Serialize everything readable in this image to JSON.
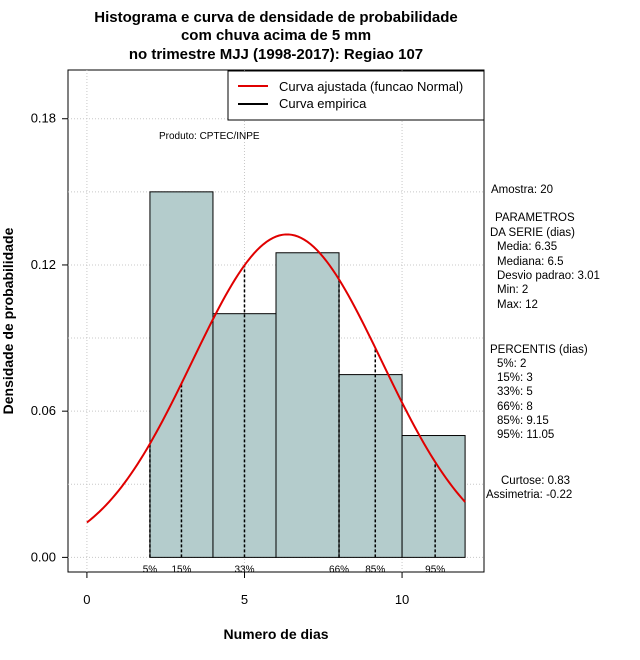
{
  "chart_data": {
    "type": "histogram",
    "title": [
      "Histograma e curva de densidade de probabilidade",
      "com chuva acima de 5 mm",
      "no trimestre MJJ (1998-2017): Regiao 107"
    ],
    "xlabel": "Numero de dias",
    "ylabel": "Densidade de probabilidade",
    "xlim": [
      -0.6,
      12.6
    ],
    "ylim": [
      -0.006,
      0.2
    ],
    "x_ticks": [
      0,
      5,
      10
    ],
    "y_ticks": [
      0.0,
      0.06,
      0.12,
      0.18
    ],
    "y_tick_labels": [
      "0.00",
      "0.06",
      "0.12",
      "0.18"
    ],
    "bins": [
      {
        "start": 2,
        "end": 4,
        "density": 0.15
      },
      {
        "start": 4,
        "end": 6,
        "density": 0.1
      },
      {
        "start": 6,
        "end": 8,
        "density": 0.125
      },
      {
        "start": 8,
        "end": 10,
        "density": 0.075
      },
      {
        "start": 10,
        "end": 12,
        "density": 0.05
      }
    ],
    "normal_fit": {
      "mean": 6.35,
      "sd": 3.01,
      "x_from": 0,
      "x_to": 12,
      "color": "#e00000"
    },
    "bar_color": "#b4cccc",
    "percentile_lines": [
      {
        "label": "5%",
        "x": 2
      },
      {
        "label": "15%",
        "x": 3
      },
      {
        "label": "33%",
        "x": 5
      },
      {
        "label": "66%",
        "x": 8
      },
      {
        "label": "85%",
        "x": 9.15
      },
      {
        "label": "95%",
        "x": 11.05
      }
    ],
    "legend": [
      {
        "label": "Curva ajustada (funcao Normal)",
        "color": "#e00000"
      },
      {
        "label": "Curva empirica",
        "color": "#000000"
      }
    ],
    "legend_position": "top-right",
    "grid": true
  },
  "annotations": {
    "product": "Produto: CPTEC/INPE"
  },
  "side_panel": {
    "sample": "Amostra: 20",
    "params_title": [
      "PARAMETROS",
      "DA SERIE (dias)"
    ],
    "params": [
      "Media: 6.35",
      "Mediana: 6.5",
      "Desvio padrao: 3.01",
      "Min: 2",
      "Max: 12"
    ],
    "percentis_title": "PERCENTIS (dias)",
    "percentis": [
      "5%: 2",
      "15%: 3",
      "33%: 5",
      "66%: 8",
      "85%: 9.15",
      "95%: 11.05"
    ],
    "shape": [
      "Curtose: 0.83",
      "Assimetria: -0.22"
    ]
  }
}
